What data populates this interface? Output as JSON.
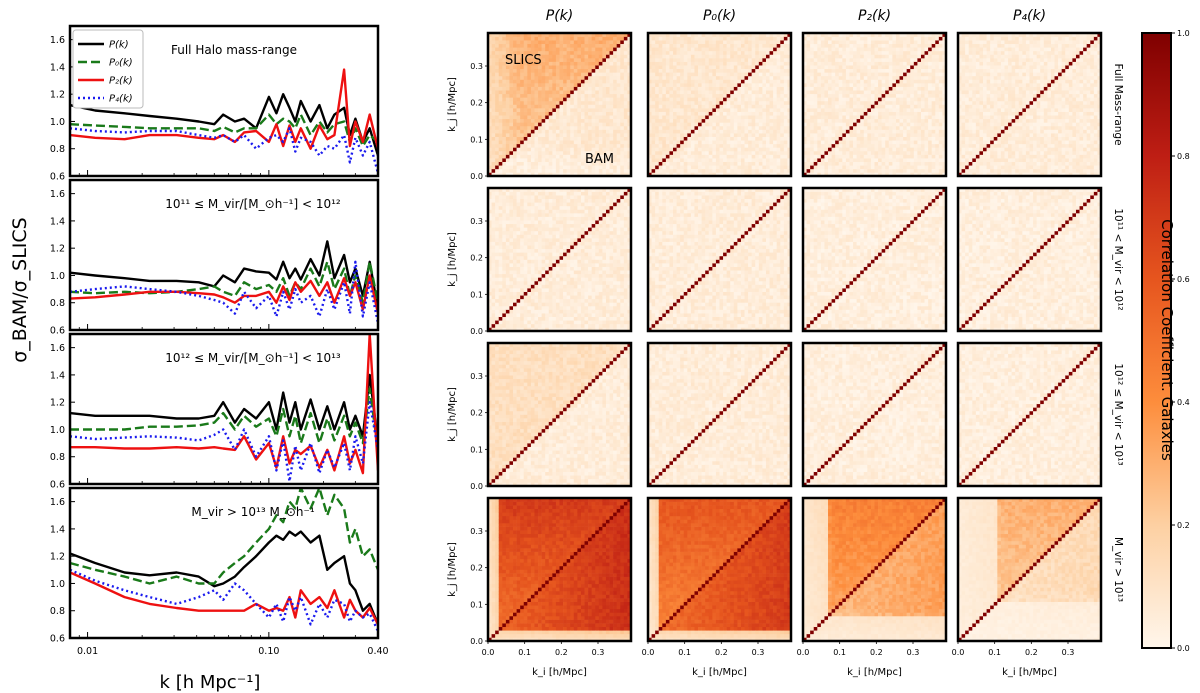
{
  "figure": {
    "ylabel": "σ_BAM/σ_SLICS",
    "xlabel": "k [h Mpc⁻¹]",
    "colorbar_label": "Correlation Coefficient. Galaxies",
    "colorbar_ticks": [
      "0.0",
      "0.2",
      "0.4",
      "0.6",
      "0.8",
      "1.0"
    ]
  },
  "chart_data": [
    {
      "type": "line",
      "panel": "ratio",
      "annotation": "Full Halo mass-range",
      "xscale": "log",
      "xlim": [
        0.008,
        0.4
      ],
      "ylim": [
        0.6,
        1.7
      ],
      "xticks": [
        "0.01",
        "0.10",
        "0.40"
      ],
      "yticks": [
        "0.6",
        "0.8",
        "1.0",
        "1.2",
        "1.4",
        "1.6"
      ],
      "legend": [
        "P(k)",
        "P₀(k)",
        "P₂(k)",
        "P₄(k)"
      ],
      "legend_position": "top-left",
      "x": [
        0.008,
        0.011,
        0.016,
        0.022,
        0.031,
        0.041,
        0.05,
        0.056,
        0.065,
        0.073,
        0.085,
        0.1,
        0.11,
        0.12,
        0.13,
        0.14,
        0.15,
        0.17,
        0.19,
        0.21,
        0.23,
        0.26,
        0.28,
        0.3,
        0.33,
        0.36,
        0.4
      ],
      "series": [
        {
          "name": "P(k)",
          "color": "#000000",
          "dash": "solid",
          "values": [
            1.12,
            1.08,
            1.06,
            1.04,
            1.02,
            1.0,
            0.98,
            1.05,
            1.0,
            1.02,
            0.95,
            1.18,
            1.06,
            1.2,
            1.1,
            1.0,
            1.15,
            1.0,
            1.12,
            0.95,
            1.05,
            1.1,
            0.9,
            1.02,
            0.85,
            0.95,
            0.75
          ]
        },
        {
          "name": "P₀(k)",
          "color": "#1a7a1a",
          "dash": "dashed",
          "values": [
            0.98,
            0.97,
            0.96,
            0.95,
            0.95,
            0.95,
            0.93,
            0.96,
            0.92,
            0.95,
            0.95,
            1.05,
            0.98,
            1.02,
            1.0,
            0.95,
            1.05,
            0.9,
            1.0,
            0.92,
            0.98,
            1.0,
            0.85,
            0.95,
            0.82,
            0.9,
            0.85
          ]
        },
        {
          "name": "P₂(k)",
          "color": "#ee1111",
          "dash": "solid",
          "values": [
            0.9,
            0.88,
            0.87,
            0.9,
            0.9,
            0.88,
            0.87,
            0.9,
            0.85,
            0.92,
            0.93,
            0.85,
            0.98,
            0.82,
            0.97,
            0.85,
            0.95,
            0.8,
            0.97,
            0.87,
            0.9,
            1.38,
            0.82,
            1.0,
            0.85,
            1.05,
            0.8
          ]
        },
        {
          "name": "P₄(k)",
          "color": "#1a1aee",
          "dash": "dotted",
          "values": [
            0.95,
            0.93,
            0.92,
            0.93,
            0.93,
            0.9,
            0.88,
            0.9,
            0.85,
            0.9,
            0.8,
            0.88,
            0.9,
            0.85,
            0.95,
            0.78,
            0.88,
            0.85,
            0.75,
            0.82,
            0.8,
            0.9,
            0.7,
            0.88,
            0.75,
            0.85,
            0.62
          ]
        }
      ]
    },
    {
      "type": "line",
      "panel": "ratio",
      "annotation": "10¹¹ ≤ M_vir/[M_⊙h⁻¹] < 10¹²",
      "xscale": "log",
      "xlim": [
        0.008,
        0.4
      ],
      "ylim": [
        0.6,
        1.7
      ],
      "x": [
        0.008,
        0.011,
        0.016,
        0.022,
        0.031,
        0.041,
        0.05,
        0.056,
        0.065,
        0.073,
        0.085,
        0.1,
        0.11,
        0.12,
        0.13,
        0.14,
        0.15,
        0.17,
        0.19,
        0.21,
        0.23,
        0.26,
        0.28,
        0.3,
        0.33,
        0.36,
        0.4
      ],
      "series": [
        {
          "name": "P(k)",
          "color": "#000000",
          "dash": "solid",
          "values": [
            1.02,
            1.0,
            0.98,
            0.96,
            0.96,
            0.95,
            0.92,
            1.0,
            0.95,
            1.05,
            1.03,
            1.02,
            0.97,
            1.1,
            0.98,
            1.05,
            0.97,
            1.12,
            1.0,
            1.25,
            0.98,
            1.15,
            0.95,
            1.05,
            0.85,
            1.1,
            0.75
          ]
        },
        {
          "name": "P₀(k)",
          "color": "#1a7a1a",
          "dash": "dashed",
          "values": [
            0.88,
            0.87,
            0.88,
            0.87,
            0.88,
            0.9,
            0.92,
            0.88,
            0.85,
            0.95,
            0.9,
            0.93,
            0.88,
            0.98,
            0.85,
            0.95,
            0.9,
            1.05,
            0.92,
            1.1,
            0.9,
            1.05,
            0.85,
            1.0,
            0.8,
            1.1,
            0.8
          ]
        },
        {
          "name": "P₂(k)",
          "color": "#ee1111",
          "dash": "solid",
          "values": [
            0.83,
            0.84,
            0.86,
            0.88,
            0.88,
            0.87,
            0.86,
            0.84,
            0.8,
            0.85,
            0.85,
            0.88,
            0.8,
            0.92,
            0.82,
            0.95,
            0.88,
            0.96,
            0.85,
            0.95,
            0.8,
            0.98,
            0.85,
            0.95,
            0.75,
            1.0,
            0.72
          ]
        },
        {
          "name": "P₄(k)",
          "color": "#1a1aee",
          "dash": "dotted",
          "values": [
            0.88,
            0.9,
            0.92,
            0.9,
            0.88,
            0.85,
            0.82,
            0.8,
            0.72,
            0.88,
            0.76,
            0.85,
            0.7,
            0.88,
            0.75,
            0.9,
            0.8,
            0.85,
            0.7,
            0.9,
            0.75,
            0.95,
            0.72,
            1.1,
            0.7,
            0.95,
            0.65
          ]
        }
      ]
    },
    {
      "type": "line",
      "panel": "ratio",
      "annotation": "10¹² ≤ M_vir/[M_⊙h⁻¹] < 10¹³",
      "xscale": "log",
      "xlim": [
        0.008,
        0.4
      ],
      "ylim": [
        0.6,
        1.7
      ],
      "x": [
        0.008,
        0.011,
        0.016,
        0.022,
        0.031,
        0.041,
        0.05,
        0.056,
        0.065,
        0.073,
        0.085,
        0.1,
        0.11,
        0.12,
        0.13,
        0.14,
        0.15,
        0.17,
        0.19,
        0.21,
        0.23,
        0.26,
        0.28,
        0.3,
        0.33,
        0.36,
        0.4
      ],
      "series": [
        {
          "name": "P(k)",
          "color": "#000000",
          "dash": "solid",
          "values": [
            1.12,
            1.1,
            1.1,
            1.1,
            1.08,
            1.08,
            1.1,
            1.2,
            1.05,
            1.15,
            1.08,
            1.2,
            1.0,
            1.27,
            1.05,
            1.2,
            1.0,
            1.22,
            1.0,
            1.17,
            1.0,
            1.2,
            1.0,
            1.1,
            0.95,
            1.4,
            0.9
          ]
        },
        {
          "name": "P₀(k)",
          "color": "#1a7a1a",
          "dash": "dashed",
          "values": [
            1.0,
            1.0,
            1.0,
            1.02,
            1.02,
            1.03,
            1.05,
            1.12,
            1.0,
            1.1,
            1.02,
            1.08,
            0.95,
            1.15,
            0.95,
            1.1,
            0.9,
            1.12,
            0.9,
            1.08,
            0.92,
            1.1,
            0.95,
            1.05,
            0.9,
            1.3,
            0.85
          ]
        },
        {
          "name": "P₂(k)",
          "color": "#ee1111",
          "dash": "solid",
          "values": [
            0.87,
            0.87,
            0.86,
            0.86,
            0.87,
            0.86,
            0.87,
            0.86,
            0.85,
            0.95,
            0.78,
            0.9,
            0.72,
            0.95,
            0.75,
            0.85,
            0.82,
            0.88,
            0.72,
            0.85,
            0.7,
            0.95,
            0.75,
            0.85,
            0.68,
            1.7,
            0.7
          ]
        },
        {
          "name": "P₄(k)",
          "color": "#1a1aee",
          "dash": "dotted",
          "values": [
            0.95,
            0.93,
            0.94,
            0.95,
            0.94,
            0.92,
            0.96,
            1.0,
            0.85,
            1.0,
            0.8,
            0.95,
            0.7,
            0.92,
            0.62,
            0.88,
            0.7,
            0.9,
            0.68,
            0.85,
            0.72,
            0.9,
            0.7,
            0.95,
            0.75,
            1.2,
            0.85
          ]
        }
      ]
    },
    {
      "type": "line",
      "panel": "ratio",
      "annotation": "M_vir > 10¹³ M_⊙h⁻¹",
      "xscale": "log",
      "xlim": [
        0.008,
        0.4
      ],
      "ylim": [
        0.6,
        1.7
      ],
      "x": [
        0.008,
        0.011,
        0.016,
        0.022,
        0.031,
        0.041,
        0.05,
        0.056,
        0.065,
        0.073,
        0.085,
        0.1,
        0.11,
        0.12,
        0.13,
        0.14,
        0.15,
        0.17,
        0.19,
        0.21,
        0.23,
        0.26,
        0.28,
        0.3,
        0.33,
        0.36,
        0.4
      ],
      "series": [
        {
          "name": "P(k)",
          "color": "#000000",
          "dash": "solid",
          "values": [
            1.22,
            1.15,
            1.08,
            1.06,
            1.08,
            1.05,
            0.98,
            1.0,
            1.05,
            1.12,
            1.2,
            1.3,
            1.35,
            1.32,
            1.38,
            1.35,
            1.38,
            1.3,
            1.35,
            1.1,
            1.15,
            1.2,
            1.0,
            0.95,
            0.8,
            0.85,
            0.7
          ]
        },
        {
          "name": "P₀(k)",
          "color": "#1a7a1a",
          "dash": "dashed",
          "values": [
            1.15,
            1.1,
            1.05,
            1.0,
            1.05,
            1.0,
            1.0,
            1.08,
            1.15,
            1.2,
            1.3,
            1.4,
            1.5,
            1.45,
            1.6,
            1.55,
            1.7,
            1.55,
            1.7,
            1.5,
            1.65,
            1.55,
            1.3,
            1.4,
            1.2,
            1.25,
            1.1
          ]
        },
        {
          "name": "P₂(k)",
          "color": "#ee1111",
          "dash": "solid",
          "values": [
            1.08,
            1.0,
            0.9,
            0.85,
            0.82,
            0.8,
            0.8,
            0.8,
            0.8,
            0.8,
            0.85,
            0.8,
            0.82,
            0.8,
            0.9,
            0.75,
            0.95,
            0.85,
            0.9,
            0.82,
            0.95,
            0.75,
            0.88,
            0.8,
            0.75,
            0.82,
            0.7
          ]
        },
        {
          "name": "P₄(k)",
          "color": "#1a1aee",
          "dash": "dotted",
          "values": [
            1.1,
            1.02,
            0.95,
            0.9,
            0.85,
            0.9,
            0.95,
            0.88,
            1.0,
            0.95,
            0.85,
            0.75,
            0.85,
            0.72,
            0.9,
            0.8,
            0.9,
            0.7,
            0.85,
            0.75,
            0.88,
            0.85,
            0.72,
            0.8,
            0.75,
            0.78,
            0.65
          ]
        }
      ]
    },
    {
      "type": "heatmap",
      "panel": "correlation_matrices",
      "columns": [
        "P(k)",
        "P₀(k)",
        "P₂(k)",
        "P₄(k)"
      ],
      "rows": [
        "Full Mass-range",
        "10¹¹ < M_vir < 10¹²",
        "10¹² ≤ M_vir < 10¹³",
        "M_vir > 10¹³"
      ],
      "x_label": "k_i [h/Mpc]",
      "y_label": "k_j [h/Mpc]",
      "axis_range": [
        0.0,
        0.39
      ],
      "ticks": [
        "0.0",
        "0.1",
        "0.2",
        "0.3"
      ],
      "upper_label": "SLICS",
      "lower_label": "BAM",
      "color_range": [
        0.0,
        1.0
      ],
      "grid_size": 40,
      "block_strength": [
        [
          [
            0.08,
            0.3
          ],
          [
            0.05,
            0.08
          ],
          [
            0.05,
            0.05
          ],
          [
            0.05,
            0.05
          ]
        ],
        [
          [
            0.05,
            0.05
          ],
          [
            0.05,
            0.05
          ],
          [
            0.04,
            0.04
          ],
          [
            0.04,
            0.04
          ]
        ],
        [
          [
            0.05,
            0.12
          ],
          [
            0.05,
            0.05
          ],
          [
            0.04,
            0.04
          ],
          [
            0.04,
            0.04
          ]
        ],
        [
          [
            0.75,
            0.7
          ],
          [
            0.7,
            0.6
          ],
          [
            0.35,
            0.45
          ],
          [
            0.15,
            0.3
          ]
        ]
      ]
    }
  ]
}
